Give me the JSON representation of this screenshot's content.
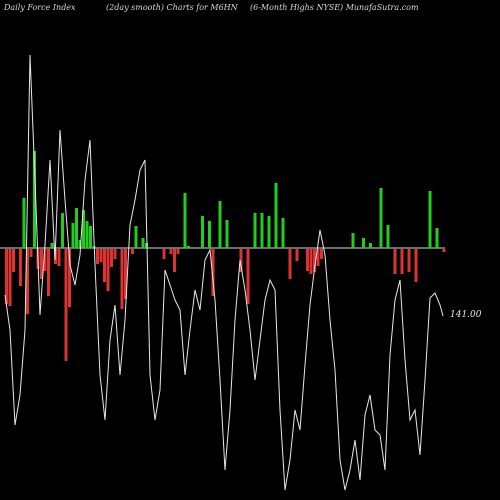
{
  "header": {
    "left": "Daily Force  Index",
    "middle": "(2day smooth) Charts for M6HN",
    "right": "(6-Month Highs NYSE) MunafaSutra.com"
  },
  "chart_data": {
    "type": "bar",
    "title": "",
    "xlabel": "",
    "ylabel": "",
    "zero_line": true,
    "colors": {
      "positive": "#22cc22",
      "negative": "#dd3333",
      "line": "#e8e8e8",
      "axis": "#dddddd",
      "background": "#000000"
    },
    "bars": [
      -55,
      -57,
      -23,
      0,
      -37,
      50,
      -65,
      -8,
      97,
      -20,
      -30,
      -22,
      -47,
      5,
      -15,
      -17,
      35,
      -112,
      -58,
      25,
      40,
      8,
      38,
      27,
      22,
      2,
      -15,
      -13,
      -33,
      -42,
      -18,
      -10,
      0,
      -60,
      -50,
      0,
      -5,
      22,
      0,
      10,
      5,
      0,
      0,
      0,
      0,
      -10,
      0,
      -5,
      -23,
      -5,
      0,
      55,
      2,
      0,
      0,
      0,
      32,
      0,
      27,
      -47,
      0,
      47,
      0,
      28,
      0,
      0,
      0,
      -23,
      0,
      -55,
      0,
      35,
      0,
      35,
      0,
      32,
      0,
      65,
      0,
      30,
      0,
      -30,
      0,
      -12,
      0,
      0,
      -22,
      -25,
      -23,
      -17,
      -10,
      0,
      0,
      0,
      0,
      0,
      0,
      0,
      0,
      15,
      0,
      0,
      10,
      0,
      5,
      0,
      0,
      60,
      0,
      23,
      0,
      -25,
      0,
      -25,
      0,
      -23,
      0,
      -33,
      0,
      0,
      0,
      57,
      0,
      20,
      0,
      -3
    ],
    "line": [],
    "last_value_label": "141.00"
  }
}
